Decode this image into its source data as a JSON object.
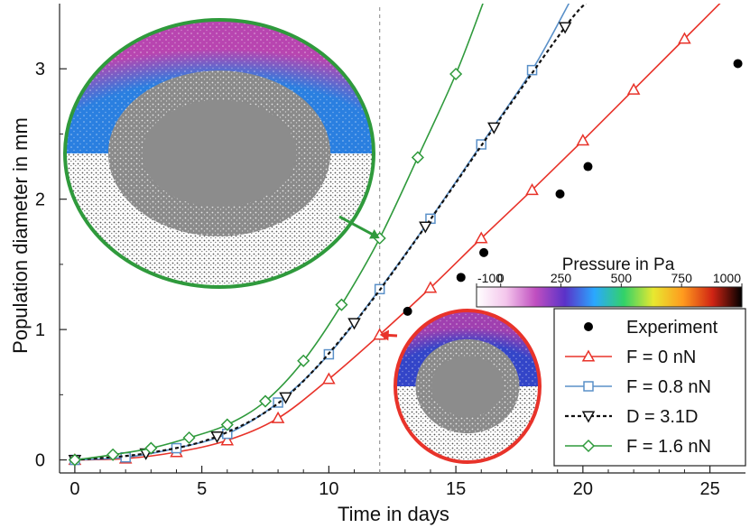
{
  "chart_data": {
    "type": "line",
    "xlabel": "Time in days",
    "ylabel": "Population diameter in mm",
    "xlim": [
      -0.6,
      26.4
    ],
    "ylim": [
      -0.1,
      3.5
    ],
    "xticks": [
      "0",
      "5",
      "10",
      "15",
      "20",
      "25"
    ],
    "yticks": [
      "0",
      "1",
      "2",
      "3"
    ],
    "reference_line_x": 12,
    "series": [
      {
        "name": "Experiment",
        "style": "markers",
        "marker": "filled-circle",
        "color": "#000000",
        "x": [
          13.1,
          15.2,
          16.1,
          19.1,
          20.2,
          26.1
        ],
        "y": [
          1.14,
          1.4,
          1.59,
          2.04,
          2.25,
          3.04
        ]
      },
      {
        "name": "F = 0 nN",
        "style": "line+markers",
        "marker": "triangle-up",
        "color": "#e8332a",
        "x": [
          0,
          2,
          4,
          6,
          8,
          10,
          12,
          14,
          16,
          18,
          20,
          22,
          24,
          26
        ],
        "y": [
          0,
          0.01,
          0.06,
          0.15,
          0.32,
          0.62,
          0.96,
          1.32,
          1.7,
          2.07,
          2.45,
          2.84,
          3.23,
          3.62
        ]
      },
      {
        "name": "F = 0.8 nN",
        "style": "line+markers",
        "marker": "square",
        "color": "#5a90c8",
        "x": [
          0,
          2,
          4,
          6,
          8,
          10,
          12,
          14,
          16,
          18,
          19.5
        ],
        "y": [
          0,
          0.02,
          0.09,
          0.2,
          0.44,
          0.81,
          1.31,
          1.85,
          2.42,
          2.99,
          3.52
        ]
      },
      {
        "name": "D = 3.1D",
        "style": "dashed+markers",
        "marker": "triangle-down",
        "color": "#111111",
        "x": [
          0,
          2.8,
          5.6,
          8.3,
          11.0,
          13.8,
          16.5,
          19.3,
          20.2
        ],
        "y": [
          0,
          0.05,
          0.18,
          0.48,
          1.05,
          1.79,
          2.55,
          3.32,
          3.52
        ]
      },
      {
        "name": "F = 1.6 nN",
        "style": "line+markers",
        "marker": "diamond",
        "color": "#2f9a3c",
        "x": [
          0,
          1.5,
          3,
          4.5,
          6,
          7.5,
          9,
          10.5,
          12,
          13.5,
          15,
          16.1
        ],
        "y": [
          0,
          0.04,
          0.09,
          0.17,
          0.27,
          0.45,
          0.76,
          1.19,
          1.7,
          2.32,
          2.96,
          3.52
        ]
      }
    ],
    "legend": {
      "placement": "bottom-right",
      "entries": [
        "Experiment",
        "F = 0 nN",
        "F = 0.8 nN",
        "D = 3.1D",
        "F = 1.6 nN"
      ]
    },
    "colorbar": {
      "title": "Pressure in Pa",
      "ticks": [
        "-100",
        "0",
        "250",
        "500",
        "750",
        "1000"
      ],
      "tick_values": [
        -100,
        0,
        250,
        500,
        750,
        1000
      ],
      "range": [
        -100,
        1000
      ],
      "stops": [
        "#ffffff",
        "#f4c6ec",
        "#c04fc0",
        "#5a32c8",
        "#2aa8ff",
        "#32d268",
        "#e8e830",
        "#ff9a1e",
        "#d02414",
        "#000000"
      ]
    },
    "insets": [
      {
        "callout_x": 12,
        "callout_y": 1.7,
        "border_color": "#2f9a3c",
        "top_color_core": "#2a7fe0",
        "top_color_rim": "#b845b0"
      },
      {
        "callout_x": 12,
        "callout_y": 0.96,
        "border_color": "#e8332a",
        "top_color_core": "#3345c8",
        "top_color_rim": "#a040b0"
      }
    ]
  }
}
